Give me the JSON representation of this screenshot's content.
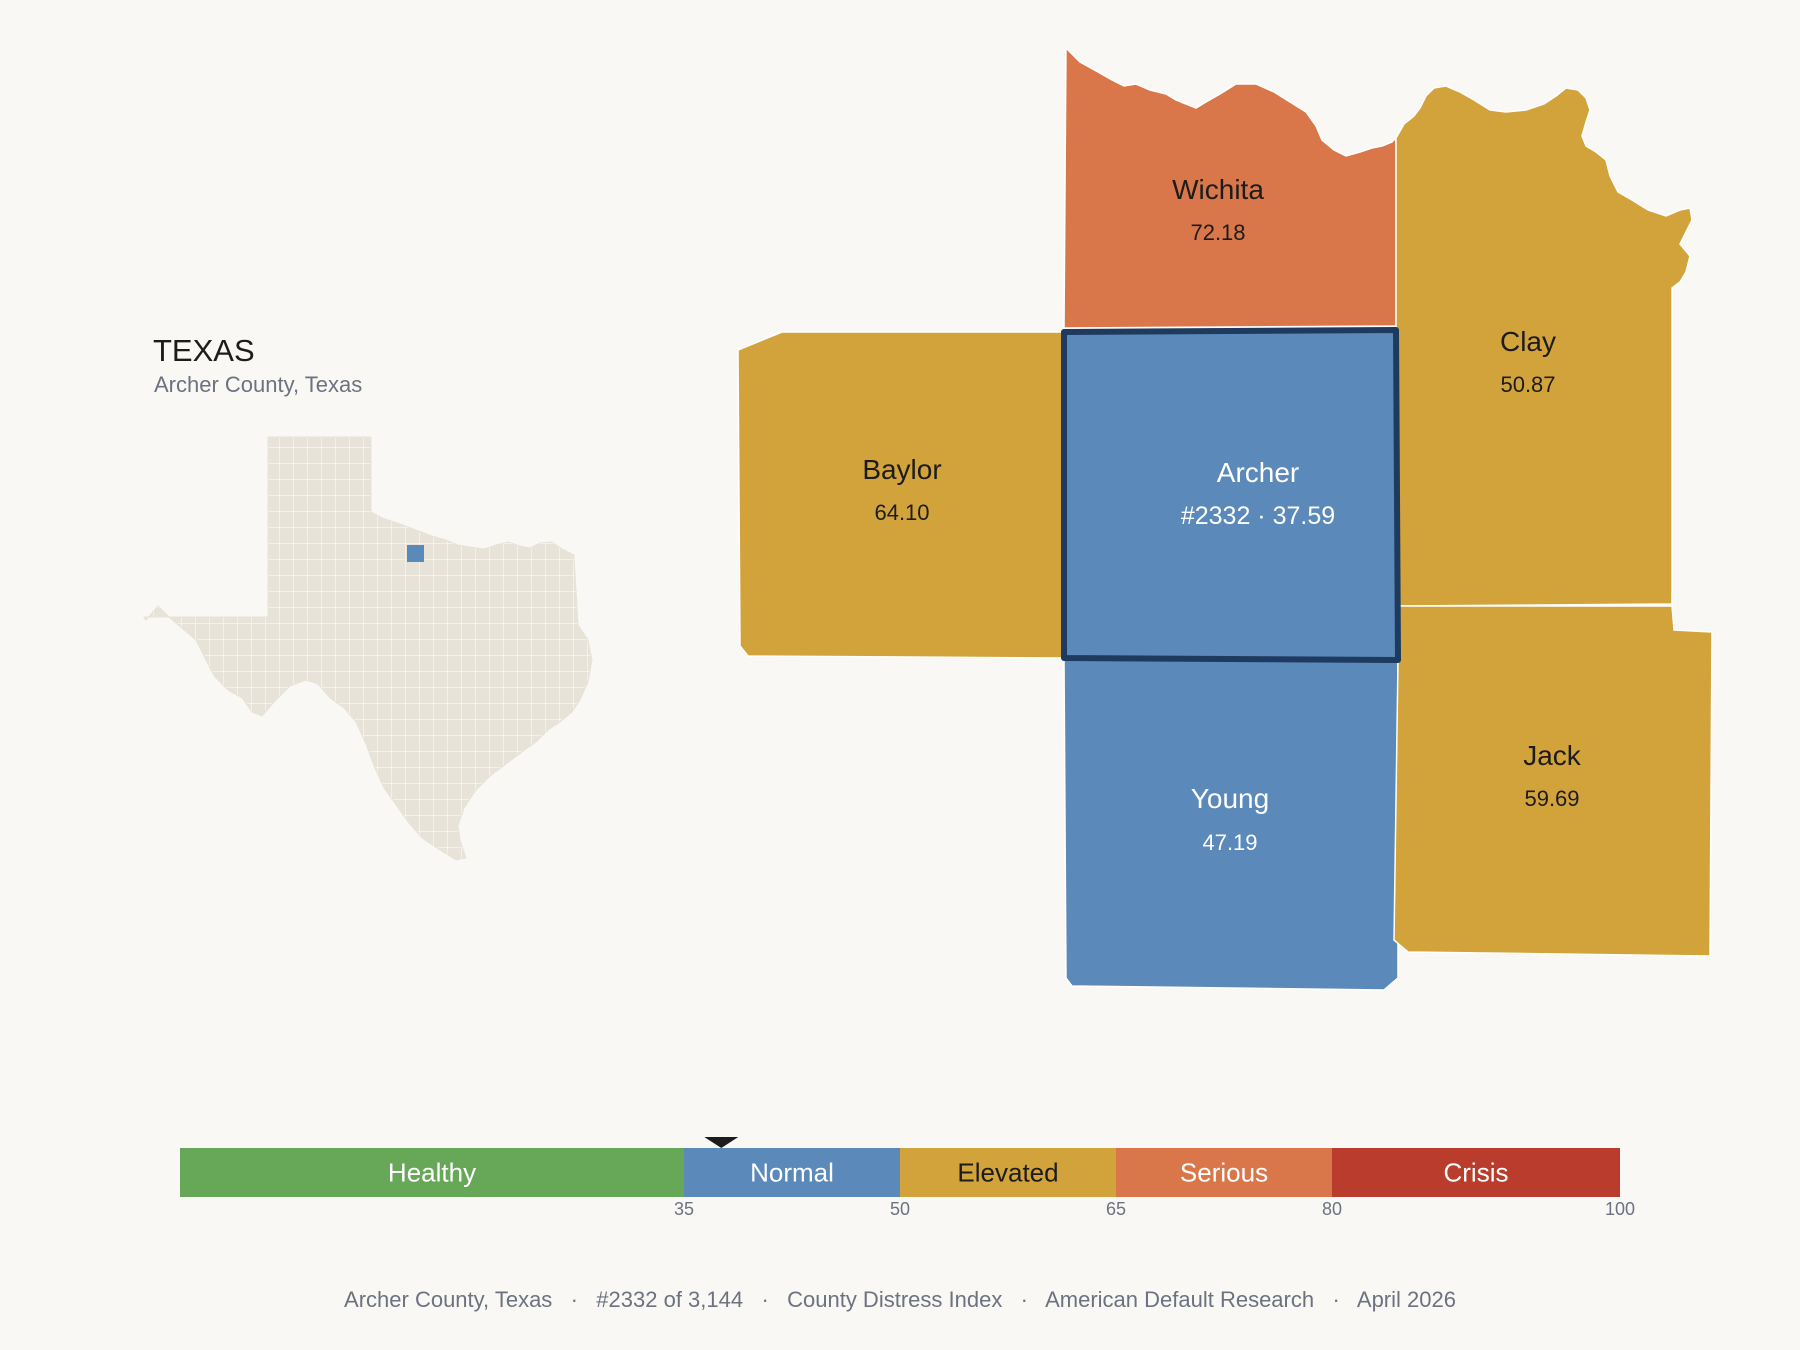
{
  "state": {
    "title": "TEXAS",
    "subtitle": "Archer County, Texas"
  },
  "colors": {
    "background": "#f9f8f5",
    "healthy": "#66a758",
    "normal": "#5b89b9",
    "elevated": "#d3a33b",
    "serious": "#d9774a",
    "crisis": "#b93c2c",
    "highlight_outline": "#1e3a5f",
    "state_fill": "#e8e3d8"
  },
  "counties": {
    "wichita": {
      "name": "Wichita",
      "value": "72.18",
      "category": "serious"
    },
    "clay": {
      "name": "Clay",
      "value": "50.87",
      "category": "elevated"
    },
    "baylor": {
      "name": "Baylor",
      "value": "64.10",
      "category": "elevated"
    },
    "archer": {
      "name": "Archer",
      "value": "#2332 · 37.59",
      "category": "normal",
      "selected": true
    },
    "young": {
      "name": "Young",
      "value": "47.19",
      "category": "normal"
    },
    "jack": {
      "name": "Jack",
      "value": "59.69",
      "category": "elevated"
    }
  },
  "legend": {
    "min": 0,
    "max": 100,
    "marker_value": 37.59,
    "segments": [
      {
        "label": "Healthy",
        "from": 0,
        "to": 35,
        "category": "healthy"
      },
      {
        "label": "Normal",
        "from": 35,
        "to": 50,
        "category": "normal"
      },
      {
        "label": "Elevated",
        "from": 50,
        "to": 65,
        "category": "elevated"
      },
      {
        "label": "Serious",
        "from": 65,
        "to": 80,
        "category": "serious"
      },
      {
        "label": "Crisis",
        "from": 80,
        "to": 100,
        "category": "crisis"
      }
    ],
    "ticks": [
      "35",
      "50",
      "65",
      "80",
      "100"
    ]
  },
  "footer": {
    "text": "Archer County, Texas   ·   #2332 of 3,144   ·   County Distress Index   ·   American Default Research   ·   April 2026"
  }
}
